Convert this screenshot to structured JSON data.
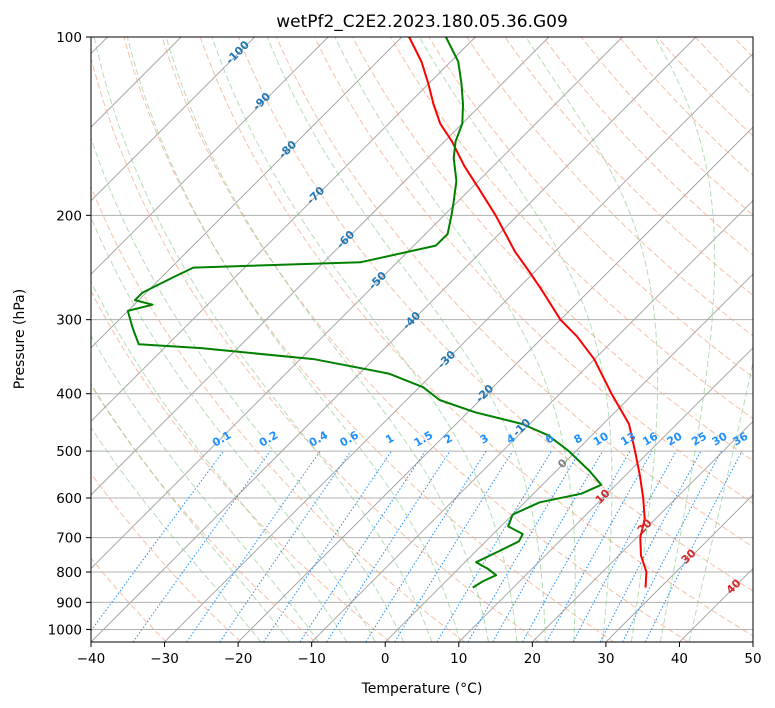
{
  "chart_data": {
    "type": "line",
    "subtype": "skew-t log-p diagram",
    "title": "wetPf2_C2E2.2023.180.05.36.G09",
    "xlabel": "Temperature (°C)",
    "ylabel": "Pressure (hPa)",
    "xlim": [
      -40,
      50
    ],
    "ylim": [
      1050,
      100
    ],
    "y_scale": "log",
    "x_ticks": [
      -40,
      -30,
      -20,
      -10,
      0,
      10,
      20,
      30,
      40,
      50
    ],
    "y_ticks": [
      100,
      200,
      300,
      400,
      500,
      600,
      700,
      800,
      900,
      1000
    ],
    "grid": true,
    "series": [
      {
        "role": "temperature",
        "color": "#ff0000",
        "points": [
          {
            "p": 850,
            "t": 28.0
          },
          {
            "p": 800,
            "t": 26.0
          },
          {
            "p": 750,
            "t": 23.0
          },
          {
            "p": 700,
            "t": 20.5
          },
          {
            "p": 650,
            "t": 18.5
          },
          {
            "p": 600,
            "t": 15.5
          },
          {
            "p": 550,
            "t": 12.0
          },
          {
            "p": 500,
            "t": 8.0
          },
          {
            "p": 450,
            "t": 3.5
          },
          {
            "p": 400,
            "t": -3.0
          },
          {
            "p": 350,
            "t": -10.0
          },
          {
            "p": 320,
            "t": -15.5
          },
          {
            "p": 300,
            "t": -20.0
          },
          {
            "p": 270,
            "t": -26.0
          },
          {
            "p": 250,
            "t": -30.5
          },
          {
            "p": 230,
            "t": -35.5
          },
          {
            "p": 200,
            "t": -43.0
          },
          {
            "p": 180,
            "t": -49.0
          },
          {
            "p": 165,
            "t": -54.0
          },
          {
            "p": 150,
            "t": -59.0
          },
          {
            "p": 140,
            "t": -63.0
          },
          {
            "p": 130,
            "t": -66.5
          },
          {
            "p": 120,
            "t": -70.0
          },
          {
            "p": 110,
            "t": -74.0
          },
          {
            "p": 100,
            "t": -79.0
          }
        ]
      },
      {
        "role": "dewpoint",
        "color": "#008000",
        "points": [
          {
            "p": 850,
            "t": 4.5
          },
          {
            "p": 830,
            "t": 5.0
          },
          {
            "p": 810,
            "t": 6.0
          },
          {
            "p": 790,
            "t": 4.0
          },
          {
            "p": 770,
            "t": 1.5
          },
          {
            "p": 740,
            "t": 3.0
          },
          {
            "p": 710,
            "t": 4.5
          },
          {
            "p": 690,
            "t": 4.0
          },
          {
            "p": 670,
            "t": 1.0
          },
          {
            "p": 640,
            "t": 0.0
          },
          {
            "p": 610,
            "t": 2.0
          },
          {
            "p": 590,
            "t": 6.5
          },
          {
            "p": 570,
            "t": 8.0
          },
          {
            "p": 540,
            "t": 4.5
          },
          {
            "p": 500,
            "t": -1.0
          },
          {
            "p": 470,
            "t": -6.0
          },
          {
            "p": 450,
            "t": -11.0
          },
          {
            "p": 430,
            "t": -19.0
          },
          {
            "p": 410,
            "t": -25.5
          },
          {
            "p": 390,
            "t": -29.5
          },
          {
            "p": 370,
            "t": -36.0
          },
          {
            "p": 350,
            "t": -48.0
          },
          {
            "p": 335,
            "t": -65.0
          },
          {
            "p": 330,
            "t": -74.0
          },
          {
            "p": 310,
            "t": -77.0
          },
          {
            "p": 290,
            "t": -80.0
          },
          {
            "p": 283,
            "t": -77.5
          },
          {
            "p": 278,
            "t": -80.5
          },
          {
            "p": 270,
            "t": -80.5
          },
          {
            "p": 255,
            "t": -78.5
          },
          {
            "p": 245,
            "t": -77.0
          },
          {
            "p": 240,
            "t": -55.0
          },
          {
            "p": 225,
            "t": -47.0
          },
          {
            "p": 215,
            "t": -47.0
          },
          {
            "p": 200,
            "t": -49.0
          },
          {
            "p": 190,
            "t": -50.5
          },
          {
            "p": 175,
            "t": -53.0
          },
          {
            "p": 160,
            "t": -56.5
          },
          {
            "p": 150,
            "t": -58.5
          },
          {
            "p": 140,
            "t": -60.0
          },
          {
            "p": 130,
            "t": -62.5
          },
          {
            "p": 120,
            "t": -65.5
          },
          {
            "p": 110,
            "t": -69.0
          },
          {
            "p": 100,
            "t": -74.0
          }
        ]
      }
    ],
    "isotherm_labels": [
      -100,
      -90,
      -80,
      -70,
      -60,
      -50,
      -40,
      -30,
      -20,
      -10,
      0
    ],
    "mixing_ratio_labels": [
      "0.1",
      "0.2",
      "0.4",
      "0.6",
      "1",
      "1.5",
      "2",
      "3",
      "4",
      "6",
      "8",
      "10",
      "13",
      "16",
      "20",
      "25",
      "30",
      "36"
    ],
    "dry_adiabat_labels": [
      "10",
      "20",
      "30",
      "40"
    ]
  }
}
